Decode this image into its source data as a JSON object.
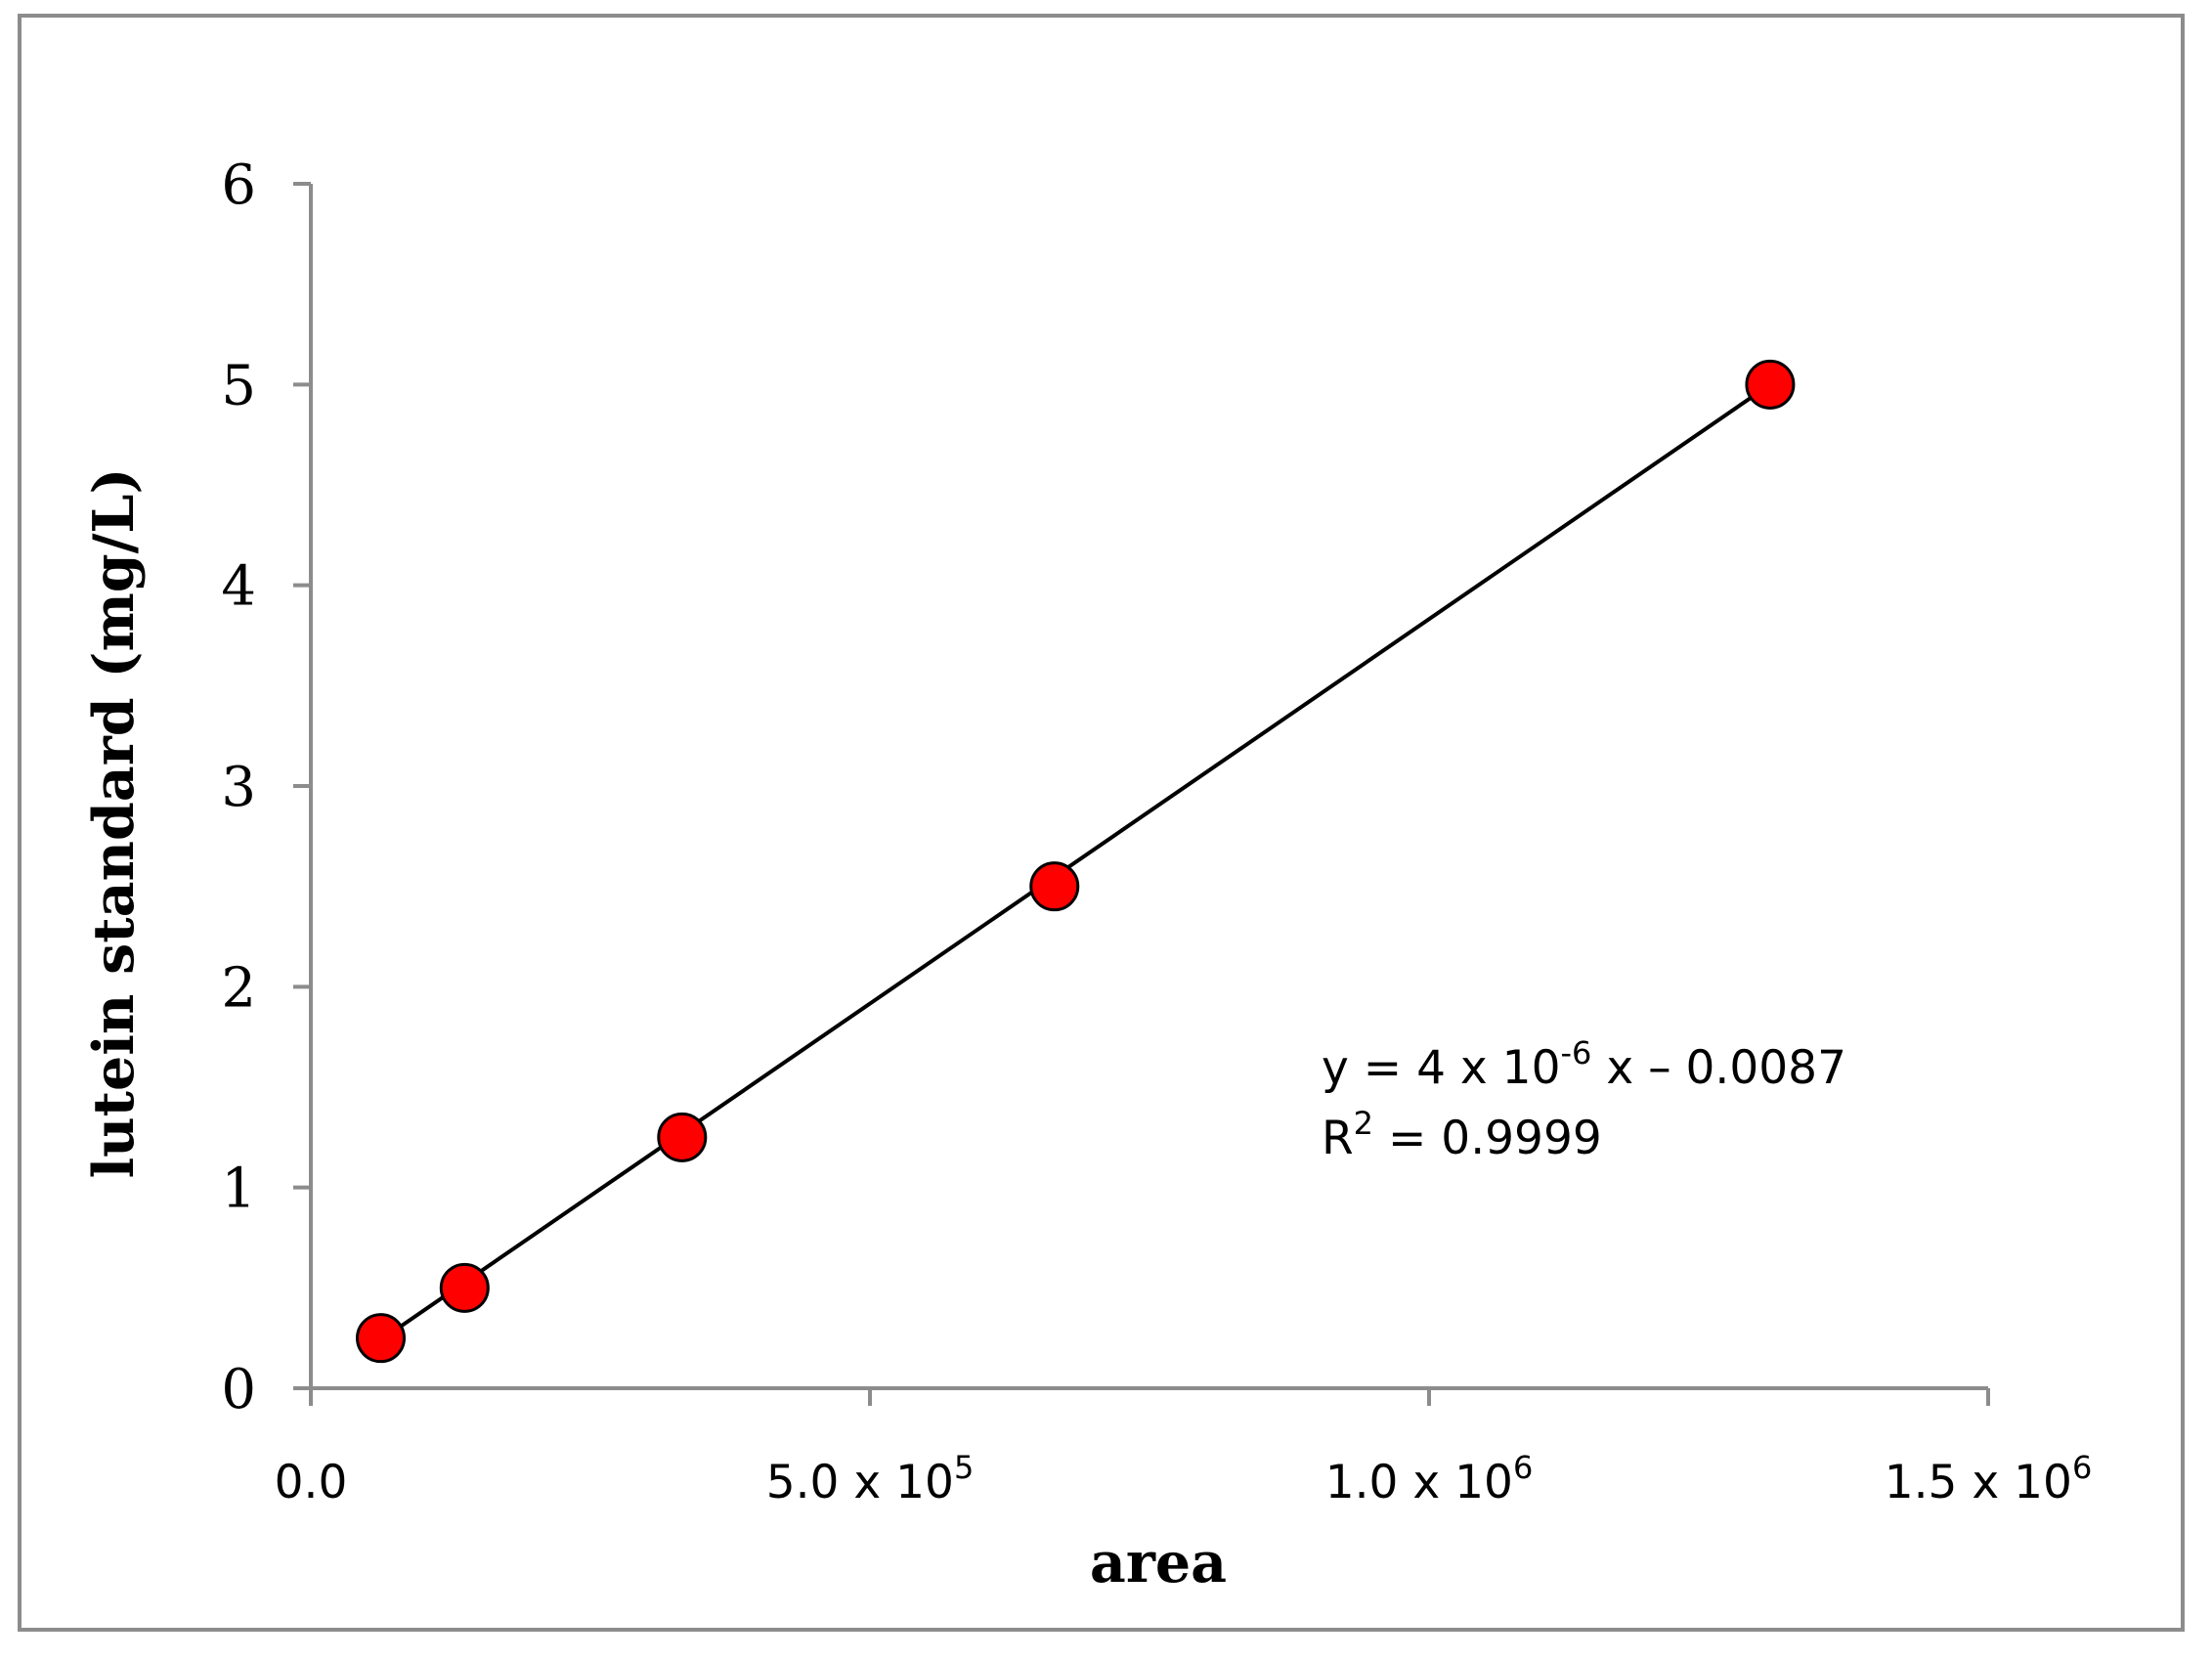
{
  "chart_data": {
    "type": "scatter",
    "xlabel": "area",
    "ylabel": "lutein standard  (mg/L)",
    "xlim": [
      0,
      1500000
    ],
    "ylim": [
      0,
      6
    ],
    "x_ticks": [
      0,
      500000,
      1000000,
      1500000
    ],
    "x_tick_labels": [
      {
        "base": "0.0",
        "exp": ""
      },
      {
        "base": "5.0 x 10",
        "exp": "5"
      },
      {
        "base": "1.0 x 10",
        "exp": "6"
      },
      {
        "base": "1.5 x 10",
        "exp": "6"
      }
    ],
    "y_ticks": [
      0,
      1,
      2,
      3,
      4,
      5,
      6
    ],
    "y_tick_labels": [
      "0",
      "1",
      "2",
      "3",
      "4",
      "5",
      "6"
    ],
    "grid": false,
    "series": [
      {
        "x": [
          62500,
          137500,
          332000,
          665000,
          1305000
        ],
        "y": [
          0.25,
          0.5,
          1.25,
          2.5,
          5.0
        ],
        "marker_color": "#ff0000"
      }
    ],
    "trendline": {
      "x_range": [
        62500,
        1305000
      ],
      "y_range": [
        0.24,
        5.0
      ],
      "color": "#000000"
    },
    "annotation": {
      "equation": {
        "prefix": "y = 4 x 10",
        "exp": "-6",
        "suffix": " x – 0.0087"
      },
      "r_squared": {
        "prefix": "R",
        "exp": "2",
        "suffix": " = 0.9999"
      }
    }
  }
}
